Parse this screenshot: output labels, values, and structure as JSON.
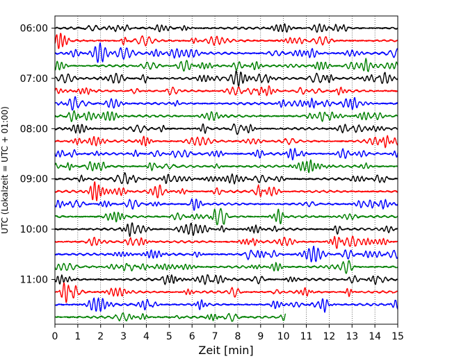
{
  "chart_data": {
    "type": "line",
    "title": "",
    "xlabel": "Zeit  [min]",
    "ylabel": "UTC (Lokalzeit = UTC + 01:00)",
    "xlim": [
      0,
      15
    ],
    "x_ticks": [
      "0",
      "1",
      "2",
      "3",
      "4",
      "5",
      "6",
      "7",
      "8",
      "9",
      "10",
      "11",
      "12",
      "13",
      "14",
      "15"
    ],
    "y_ticks": [
      "06:00",
      "07:00",
      "08:00",
      "09:00",
      "10:00",
      "11:00"
    ],
    "grid": "vertical-dotted",
    "legend": "none",
    "trace_interval_minutes": 15,
    "trace_colors": [
      "#000000",
      "#ff0000",
      "#0000ff",
      "#008000"
    ],
    "traces": [
      {
        "start": "06:00",
        "end_minute": 15
      },
      {
        "start": "06:15",
        "end_minute": 15
      },
      {
        "start": "06:30",
        "end_minute": 15
      },
      {
        "start": "06:45",
        "end_minute": 15
      },
      {
        "start": "07:00",
        "end_minute": 15
      },
      {
        "start": "07:15",
        "end_minute": 15
      },
      {
        "start": "07:30",
        "end_minute": 15
      },
      {
        "start": "07:45",
        "end_minute": 15
      },
      {
        "start": "08:00",
        "end_minute": 15
      },
      {
        "start": "08:15",
        "end_minute": 15
      },
      {
        "start": "08:30",
        "end_minute": 15
      },
      {
        "start": "08:45",
        "end_minute": 15
      },
      {
        "start": "09:00",
        "end_minute": 15
      },
      {
        "start": "09:15",
        "end_minute": 15
      },
      {
        "start": "09:30",
        "end_minute": 15
      },
      {
        "start": "09:45",
        "end_minute": 15
      },
      {
        "start": "10:00",
        "end_minute": 15
      },
      {
        "start": "10:15",
        "end_minute": 15
      },
      {
        "start": "10:30",
        "end_minute": 15
      },
      {
        "start": "10:45",
        "end_minute": 15
      },
      {
        "start": "11:00",
        "end_minute": 15
      },
      {
        "start": "11:15",
        "end_minute": 15
      },
      {
        "start": "11:30",
        "end_minute": 15
      },
      {
        "start": "11:45",
        "end_minute": 10.1
      }
    ]
  }
}
